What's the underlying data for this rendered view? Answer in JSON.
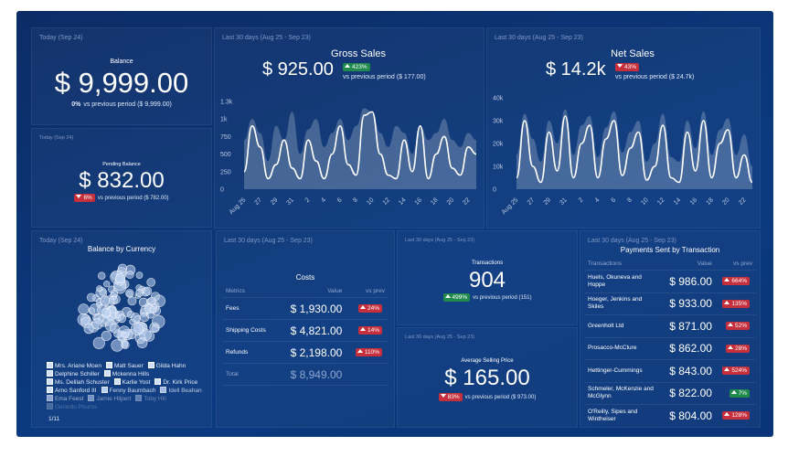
{
  "widgets": {
    "balance": {
      "period": "Today (Sep 24)",
      "title": "Balance",
      "value": "$ 9,999.00",
      "change": "0%",
      "comparison": "vs previous period ($ 9,999.00)"
    },
    "pending_balance": {
      "period": "Today (Sep 24)",
      "title": "Pending Balance",
      "value": "$ 832.00",
      "change": "6%",
      "comparison": "vs previous period ($ 782.00)"
    },
    "gross_sales": {
      "period": "Last 30 days (Aug 25 - Sep 23)",
      "value": "$ 925.00",
      "change": "423%",
      "comparison": "vs previous period ($ 177.00)"
    },
    "net_sales": {
      "period": "Last 30 days (Aug 25 - Sep 23)",
      "value": "$ 14.2k",
      "change": "43%",
      "comparison": "vs previous period ($ 24.7k)"
    },
    "currency": {
      "period": "Today (Sep 24)",
      "title": "Balance by Currency",
      "legend": [
        "Mrs. Ariane Moen",
        "Matt Sauer",
        "Gilda Hahn",
        "Delphine Schiller",
        "Mckenna Hills",
        "Ms. Delilah Schuster",
        "Karlie Yost",
        "Dr. Kirk Price",
        "Arno Sanford III",
        "Fenny Baumbach",
        "Idell Beahan",
        "Ema Feest",
        "Jamie Hilpert",
        "Toby Hill",
        "Gerardo Pouros"
      ],
      "page": "1/11"
    },
    "costs": {
      "period": "Last 30 days (Aug 25 - Sep 23)",
      "title": "Costs",
      "columns": [
        "Metrics",
        "Value",
        "vs prev"
      ],
      "rows": [
        {
          "name": "Fees",
          "value": "$ 1,930.00",
          "change": "24%",
          "color": "#c62f3c"
        },
        {
          "name": "Shipping Costs",
          "value": "$ 4,821.00",
          "change": "14%",
          "color": "#c62f3c"
        },
        {
          "name": "Refunds",
          "value": "$ 2,198.00",
          "change": "110%",
          "color": "#c62f3c"
        }
      ],
      "total_label": "Total",
      "total_value": "$ 8,949.00"
    },
    "transactions": {
      "period": "Last 30 days (Aug 25 - Sep 23)",
      "title": "Transactions",
      "value": "904",
      "change": "499%",
      "comparison": "vs previous period (151)"
    },
    "average_selling_price": {
      "period": "Last 30 days (Aug 25 - Sep 23)",
      "title": "Average Selling Price",
      "value": "$ 165.00",
      "change": "83%",
      "comparison": "vs previous period ($ 973.00)"
    },
    "payments": {
      "period": "Last 30 days (Aug 25 - Sep 23)",
      "title": "Payments Sent by Transaction",
      "columns": [
        "Transactions",
        "Value",
        "vs prev"
      ],
      "rows": [
        {
          "name": "Huels, Okuneva and Hoppe",
          "value": "$ 986.00",
          "change": "664%",
          "color": "#c62f3c"
        },
        {
          "name": "Hoeger, Jenkins and Skiles",
          "value": "$ 933.00",
          "change": "135%",
          "color": "#c62f3c"
        },
        {
          "name": "Greenholt Ltd",
          "value": "$ 871.00",
          "change": "52%",
          "color": "#c62f3c"
        },
        {
          "name": "Prosacco-McClure",
          "value": "$ 862.00",
          "change": "28%",
          "color": "#c62f3c"
        },
        {
          "name": "Hettinger-Cummings",
          "value": "$ 843.00",
          "change": "524%",
          "color": "#c62f3c"
        },
        {
          "name": "Schmeler, McKenzie and McGlynn",
          "value": "$ 822.00",
          "change": "7%",
          "color": "#1f8a4c"
        },
        {
          "name": "O'Reilly, Sipes and Wintheiser",
          "value": "$ 804.00",
          "change": "128%",
          "color": "#c62f3c"
        }
      ]
    }
  },
  "chart_data": [
    {
      "type": "line",
      "title": "Gross Sales",
      "categories": [
        "Aug 25",
        null,
        "27",
        null,
        "29",
        null,
        "31",
        null,
        "2",
        null,
        "4",
        null,
        "6",
        null,
        "8",
        null,
        "10",
        null,
        "12",
        null,
        "14",
        null,
        "16",
        null,
        "18",
        null,
        "20",
        null,
        "22",
        null
      ],
      "series": [
        {
          "style": "area",
          "color": "#ffffff",
          "values": [
            700,
            1000,
            800,
            400,
            900,
            700,
            1100,
            500,
            850,
            1000,
            600,
            800,
            1000,
            700,
            900,
            1150,
            1100,
            800,
            600,
            900,
            800,
            500,
            900,
            700,
            800,
            1000,
            700,
            600,
            800,
            700
          ]
        },
        {
          "style": "line",
          "color": "#ffffff",
          "values": [
            250,
            900,
            600,
            150,
            350,
            700,
            300,
            150,
            700,
            400,
            150,
            500,
            900,
            350,
            200,
            1050,
            1100,
            500,
            200,
            150,
            700,
            250,
            900,
            150,
            500,
            750,
            300,
            200,
            600,
            500
          ]
        }
      ],
      "ylim": [
        0,
        1300
      ],
      "yticks": [
        0,
        250,
        500,
        750,
        {
          "value": 1000,
          "label": "1k"
        },
        {
          "value": 1250,
          "label": "1.3k"
        }
      ]
    },
    {
      "type": "line",
      "title": "Net Sales",
      "categories": [
        "Aug 25",
        null,
        "27",
        null,
        "29",
        null,
        "31",
        null,
        "2",
        null,
        "4",
        null,
        "6",
        null,
        "8",
        null,
        "10",
        null,
        "12",
        null,
        "14",
        null,
        "16",
        null,
        "18",
        null,
        "20",
        null,
        "22",
        null
      ],
      "series": [
        {
          "style": "area",
          "color": "#ffffff",
          "values": [
            15000,
            33000,
            22000,
            12000,
            30000,
            20000,
            35000,
            15000,
            28000,
            32000,
            14000,
            27000,
            34000,
            16000,
            25000,
            30000,
            12000,
            20000,
            33000,
            14000,
            12000,
            30000,
            18000,
            34000,
            15000,
            26000,
            31000,
            15000,
            24000,
            10000
          ]
        },
        {
          "style": "line",
          "color": "#ffffff",
          "values": [
            5000,
            30000,
            10000,
            3000,
            25000,
            8000,
            32000,
            5000,
            20000,
            28000,
            5000,
            22000,
            30000,
            6000,
            18000,
            25000,
            4000,
            10000,
            28000,
            5000,
            3000,
            25000,
            8000,
            30000,
            5000,
            20000,
            26000,
            5000,
            15000,
            3000
          ]
        }
      ],
      "ylim": [
        0,
        40000
      ],
      "yticks": [
        0,
        {
          "value": 10000,
          "label": "10k"
        },
        {
          "value": 20000,
          "label": "20k"
        },
        {
          "value": 30000,
          "label": "30k"
        },
        {
          "value": 40000,
          "label": "40k"
        }
      ]
    }
  ]
}
